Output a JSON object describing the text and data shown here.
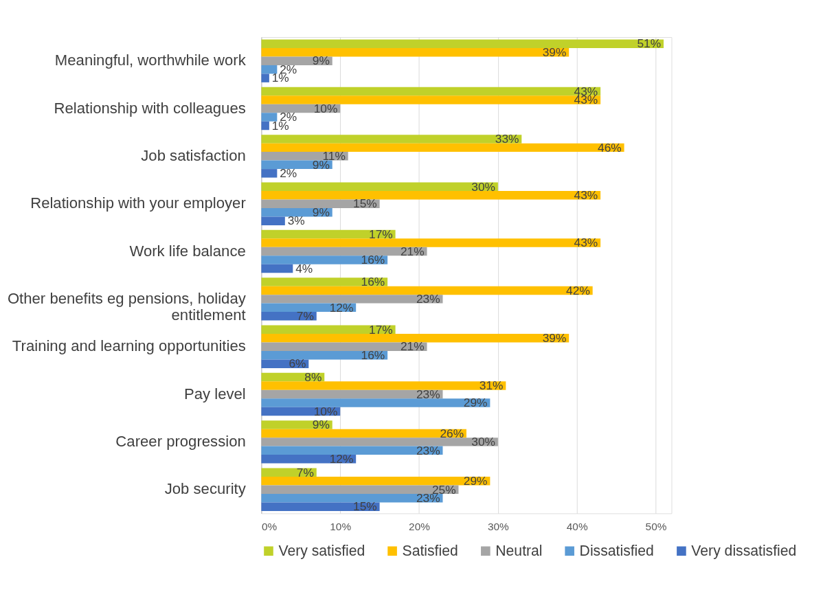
{
  "chart_data": {
    "type": "bar",
    "orientation": "horizontal",
    "categories": [
      "Meaningful, worthwhile work",
      "Relationship with colleagues",
      "Job satisfaction",
      "Relationship with your employer",
      "Work life balance",
      "Other benefits eg pensions, holiday entitlement",
      "Training and learning opportunities",
      "Pay level",
      "Career progression",
      "Job security"
    ],
    "series": [
      {
        "name": "Very satisfied",
        "color": "#c0d12a",
        "values": [
          51,
          43,
          33,
          30,
          17,
          16,
          17,
          8,
          9,
          7
        ],
        "value_labels": [
          "51%",
          "43%",
          "33%",
          "30%",
          "17%",
          "16%",
          "17%",
          "8%",
          "9%",
          "7%"
        ]
      },
      {
        "name": "Satisfied",
        "color": "#ffc000",
        "values": [
          39,
          43,
          46,
          43,
          43,
          42,
          39,
          31,
          26,
          29
        ],
        "value_labels": [
          "39%",
          "43%",
          "46%",
          "43%",
          "43%",
          "42%",
          "39%",
          "31%",
          "26%",
          "29%"
        ]
      },
      {
        "name": "Neutral",
        "color": "#a5a5a5",
        "values": [
          9,
          10,
          11,
          15,
          21,
          23,
          21,
          23,
          30,
          25
        ],
        "value_labels": [
          "9%",
          "10%",
          "11%",
          "15%",
          "21%",
          "23%",
          "21%",
          "23%",
          "30%",
          "25%"
        ]
      },
      {
        "name": "Dissatisfied",
        "color": "#5b9bd5",
        "values": [
          2,
          2,
          9,
          9,
          16,
          12,
          16,
          29,
          23,
          23
        ],
        "value_labels": [
          "2%",
          "2%",
          "9%",
          "9%",
          "16%",
          "12%",
          "16%",
          "29%",
          "23%",
          "23%"
        ]
      },
      {
        "name": "Very dissatisfied",
        "color": "#4472c4",
        "values": [
          1,
          1,
          2,
          3,
          4,
          7,
          6,
          10,
          12,
          15
        ],
        "value_labels": [
          "1%",
          "1%",
          "2%",
          "3%",
          "4%",
          "7%",
          "6%",
          "10%",
          "12%",
          "15%"
        ]
      }
    ],
    "xlim": [
      0,
      52
    ],
    "xticks": [
      {
        "value": 0,
        "label": "0%"
      },
      {
        "value": 10,
        "label": "10%"
      },
      {
        "value": 20,
        "label": "20%"
      },
      {
        "value": 30,
        "label": "30%"
      },
      {
        "value": 40,
        "label": "40%"
      },
      {
        "value": 50,
        "label": "50%"
      }
    ],
    "grid": "x",
    "legend": "bottom"
  }
}
